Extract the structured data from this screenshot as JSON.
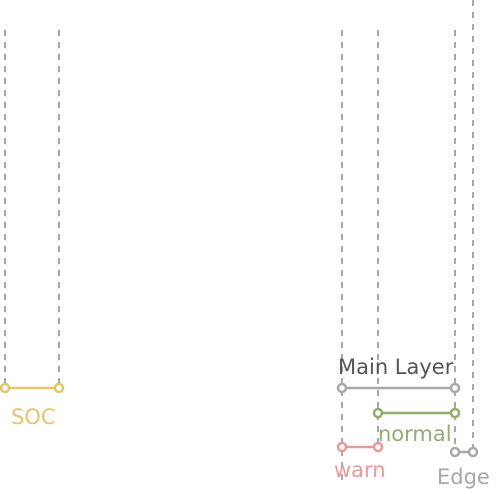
{
  "diagram": {
    "spans": [
      {
        "key": "soc",
        "label": "SOC",
        "color": "#e6c46a"
      },
      {
        "key": "main",
        "label": "Main Layer",
        "color": "#a8a8a8"
      },
      {
        "key": "normal",
        "label": "normal",
        "color": "#8fae6e"
      },
      {
        "key": "warn",
        "label": "warn",
        "color": "#e89a9a"
      },
      {
        "key": "edge",
        "label": "Edge",
        "color": "#a8a8a8"
      }
    ],
    "title_color": "#555555",
    "guide_color": "#a8a8a8"
  }
}
